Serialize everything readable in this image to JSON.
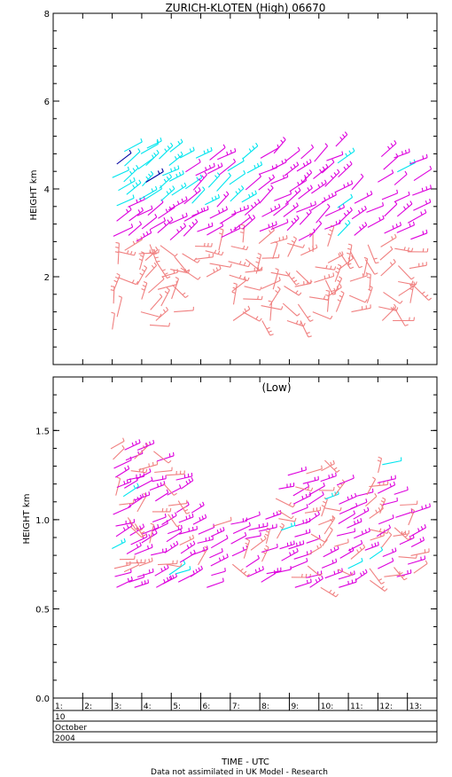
{
  "chart_data": [
    {
      "type": "wind-profiler",
      "title": "ZURICH-KLOTEN (High) 06670",
      "ylabel": "HEIGHT km",
      "ylim": [
        0,
        8
      ],
      "yticks": [
        "2",
        "4",
        "6",
        "8"
      ],
      "color_bands": {
        "salmon": "#f08080",
        "magenta": "#dd00dd",
        "cyan": "#00e5ee",
        "navy": "#0000a0"
      },
      "grid": false
    },
    {
      "type": "wind-profiler",
      "subtitle": "(Low)",
      "ylabel": "HEIGHT km",
      "ylim": [
        0.0,
        1.8
      ],
      "yticks": [
        "0.0",
        "0.5",
        "1.0",
        "1.5"
      ],
      "grid": false
    }
  ],
  "time_axis": {
    "ticks": [
      "1:",
      "2:",
      "3:",
      "4:",
      "5:",
      "6:",
      "7:",
      "8:",
      "9:",
      "10:",
      "11:",
      "12:",
      "13:"
    ],
    "xlim": [
      1,
      14
    ],
    "day": "10",
    "month": "October",
    "year": "2004"
  },
  "xlabel": "TIME - UTC",
  "footer": "Data not assimilated in UK Model - Research"
}
